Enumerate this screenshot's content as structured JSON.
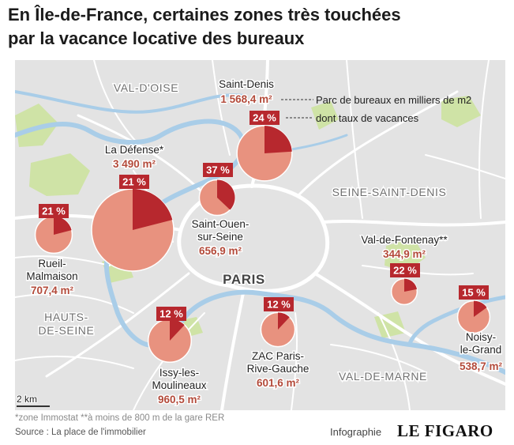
{
  "title_line1": "En Île-de-France, certaines zones très touchées",
  "title_line2": "par la vacance locative des bureaux",
  "colors": {
    "map_background": "#e3e3e3",
    "street": "#ffffff",
    "water": "#a9cde8",
    "park": "#cfe3a6",
    "bubble_fill": "#e8927f",
    "vacancy_fill": "#b7282e",
    "pct_label_bg": "#b7282e",
    "area_label": "#b34a3a",
    "region_label": "#707070"
  },
  "regions": [
    "VAL-D'OISE",
    "SEINE-SAINT-DENIS",
    "PARIS",
    "HAUTS-DE-SEINE",
    "VAL-DE-MARNE"
  ],
  "legend": {
    "stock_label": "Parc de bureaux en milliers de m2",
    "rate_label": "dont taux de vacances"
  },
  "scale_label": "2 km",
  "chart_data": {
    "type": "proportional-symbol-map",
    "title": "En Île-de-France, certaines zones très touchées par la vacance locative des bureaux",
    "size_variable": "Parc de bureaux en milliers de m2",
    "pie_variable": "dont taux de vacances",
    "zones": [
      {
        "name": "Saint-Denis",
        "stock_display": "1 568,4 m²",
        "stock": 1568.4,
        "vacancy_display": "24 %",
        "vacancy": 24
      },
      {
        "name": "La Défense*",
        "stock_display": "3 490 m²",
        "stock": 3490,
        "vacancy_display": "21 %",
        "vacancy": 21
      },
      {
        "name": "Saint-Ouen-sur-Seine",
        "stock_display": "656,9 m²",
        "stock": 656.9,
        "vacancy_display": "37 %",
        "vacancy": 37
      },
      {
        "name": "Rueil-Malmaison",
        "stock_display": "707,4 m²",
        "stock": 707.4,
        "vacancy_display": "21 %",
        "vacancy": 21
      },
      {
        "name": "Val-de-Fontenay**",
        "stock_display": "344,9 m²",
        "stock": 344.9,
        "vacancy_display": "22 %",
        "vacancy": 22
      },
      {
        "name": "Issy-les-Moulineaux",
        "stock_display": "960,5 m²",
        "stock": 960.5,
        "vacancy_display": "12 %",
        "vacancy": 12
      },
      {
        "name": "ZAC Paris-Rive-Gauche",
        "stock_display": "601,6 m²",
        "stock": 601.6,
        "vacancy_display": "12 %",
        "vacancy": 12
      },
      {
        "name": "Noisy-le-Grand",
        "stock_display": "538,7 m²",
        "stock": 538.7,
        "vacancy_display": "15 %",
        "vacancy": 15
      }
    ]
  },
  "footnote": "*zone Immostat **à moins de 800 m de la gare RER",
  "source": "Source : La place de l'immobilier",
  "credit_prefix": "Infographie",
  "credit_brand": "LE FIGARO"
}
